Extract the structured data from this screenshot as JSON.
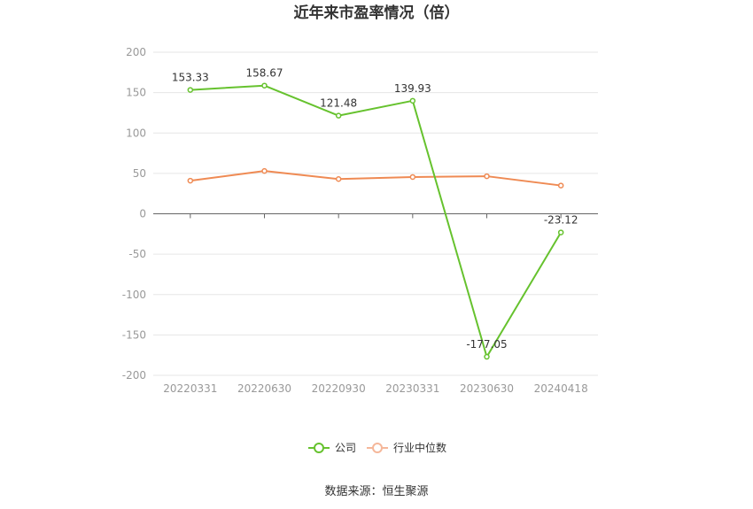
{
  "chart_data": {
    "type": "line",
    "title": "近年来市盈率情况（倍）",
    "categories": [
      "20220331",
      "20220630",
      "20220930",
      "20230331",
      "20230630",
      "20240418"
    ],
    "series": [
      {
        "name": "公司",
        "values": [
          153.33,
          158.67,
          121.48,
          139.93,
          -177.05,
          -23.12
        ],
        "color": "#66c22e",
        "labels": [
          "153.33",
          "158.67",
          "121.48",
          "139.93",
          "-177.05",
          "-23.12"
        ]
      },
      {
        "name": "行业中位数",
        "values": [
          41,
          53,
          43,
          45.5,
          46.5,
          35
        ],
        "color": "#ef8a53"
      }
    ],
    "yticks": [
      "200",
      "150",
      "100",
      "50",
      "0",
      "-50",
      "-100",
      "-150",
      "-200"
    ],
    "ylim": [
      -200,
      200
    ],
    "grid": true,
    "legend_position": "bottom",
    "source": "数据来源：恒生聚源"
  }
}
